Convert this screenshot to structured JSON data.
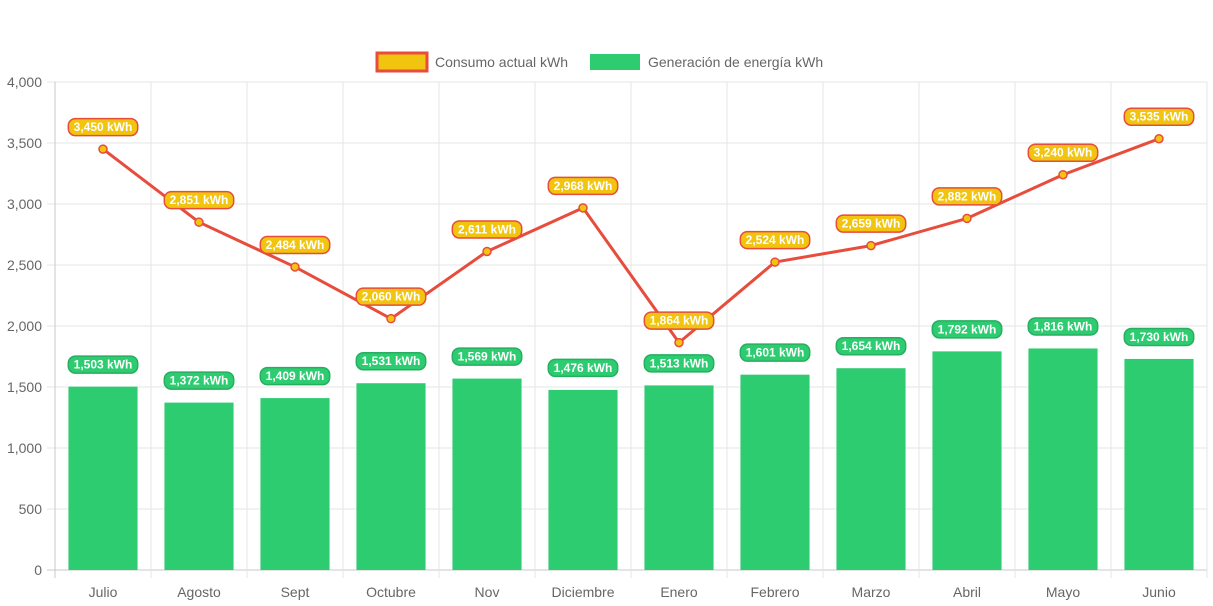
{
  "chart_data": {
    "type": "bar",
    "categories": [
      "Julio",
      "Agosto",
      "Sept",
      "Octubre",
      "Nov",
      "Diciembre",
      "Enero",
      "Febrero",
      "Marzo",
      "Abril",
      "Mayo",
      "Junio"
    ],
    "ylim": [
      0,
      4000
    ],
    "yticks": [
      0,
      500,
      1000,
      1500,
      2000,
      2500,
      3000,
      3500,
      4000
    ],
    "ytick_labels": [
      "0",
      "500",
      "1,000",
      "1,500",
      "2,000",
      "2,500",
      "3,000",
      "3,500",
      "4,000"
    ],
    "grid": true,
    "legend_position": "top-center",
    "series": [
      {
        "name": "Consumo actual kWh",
        "type": "line",
        "color": "#e74c3c",
        "fill": "#f1c40f",
        "values": [
          3450,
          2851,
          2484,
          2060,
          2611,
          2968,
          1864,
          2524,
          2659,
          2882,
          3240,
          3535
        ],
        "labels": [
          "3,450 kWh",
          "2,851 kWh",
          "2,484 kWh",
          "2,060 kWh",
          "2,611 kWh",
          "2,968 kWh",
          "1,864 kWh",
          "2,524 kWh",
          "2,659 kWh",
          "2,882 kWh",
          "3,240 kWh",
          "3,535 kWh"
        ]
      },
      {
        "name": "Generación de energía kWh",
        "type": "bar",
        "color": "#2ecc71",
        "values": [
          1503,
          1372,
          1409,
          1531,
          1569,
          1476,
          1513,
          1601,
          1654,
          1792,
          1816,
          1730
        ],
        "labels": [
          "1,503 kWh",
          "1,372 kWh",
          "1,409 kWh",
          "1,531 kWh",
          "1,569 kWh",
          "1,476 kWh",
          "1,513 kWh",
          "1,601 kWh",
          "1,654 kWh",
          "1,792 kWh",
          "1,816 kWh",
          "1,730 kWh"
        ]
      }
    ]
  }
}
